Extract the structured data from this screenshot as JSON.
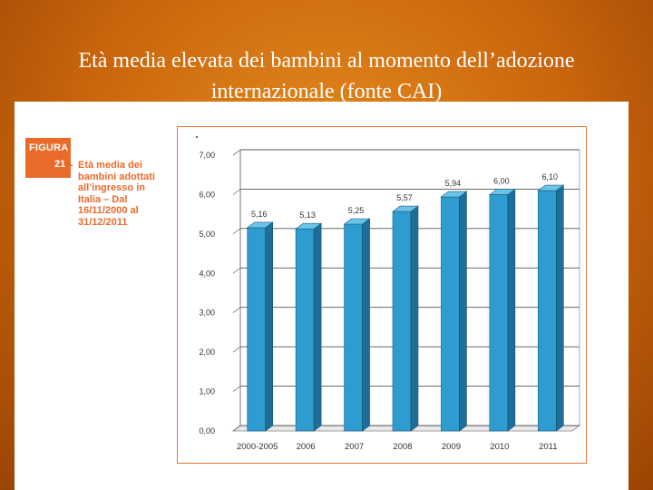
{
  "slide": {
    "title": "Età media elevata dei bambini al momento dell’adozione internazionale (fonte CAI)"
  },
  "figure": {
    "badge_label": "FIGURA",
    "badge_number": "21",
    "caption_dash": "-",
    "caption_lines": [
      "Età media dei",
      "bambini adottati",
      "all’ingresso in",
      "Italia – Dal",
      "16/11/2000 al",
      "31/12/2011"
    ]
  },
  "colors": {
    "bar_front": "#2e9ccf",
    "bar_side": "#1c6f99",
    "bar_top": "#6cc3e8",
    "accent": "#ea6a2a"
  },
  "chart_data": {
    "type": "bar",
    "categories": [
      "2000-2005",
      "2006",
      "2007",
      "2008",
      "2009",
      "2010",
      "2011"
    ],
    "values": [
      5.16,
      5.13,
      5.25,
      5.57,
      5.94,
      6.0,
      6.1
    ],
    "value_labels": [
      "5,16",
      "5,13",
      "5,25",
      "5,57",
      "5,94",
      "6,00",
      "6,10"
    ],
    "yticks": [
      "0,00",
      "1,00",
      "2,00",
      "3,00",
      "4,00",
      "5,00",
      "6,00",
      "7,00"
    ],
    "ylim": [
      0,
      7
    ],
    "grid": true,
    "style": "3d"
  }
}
